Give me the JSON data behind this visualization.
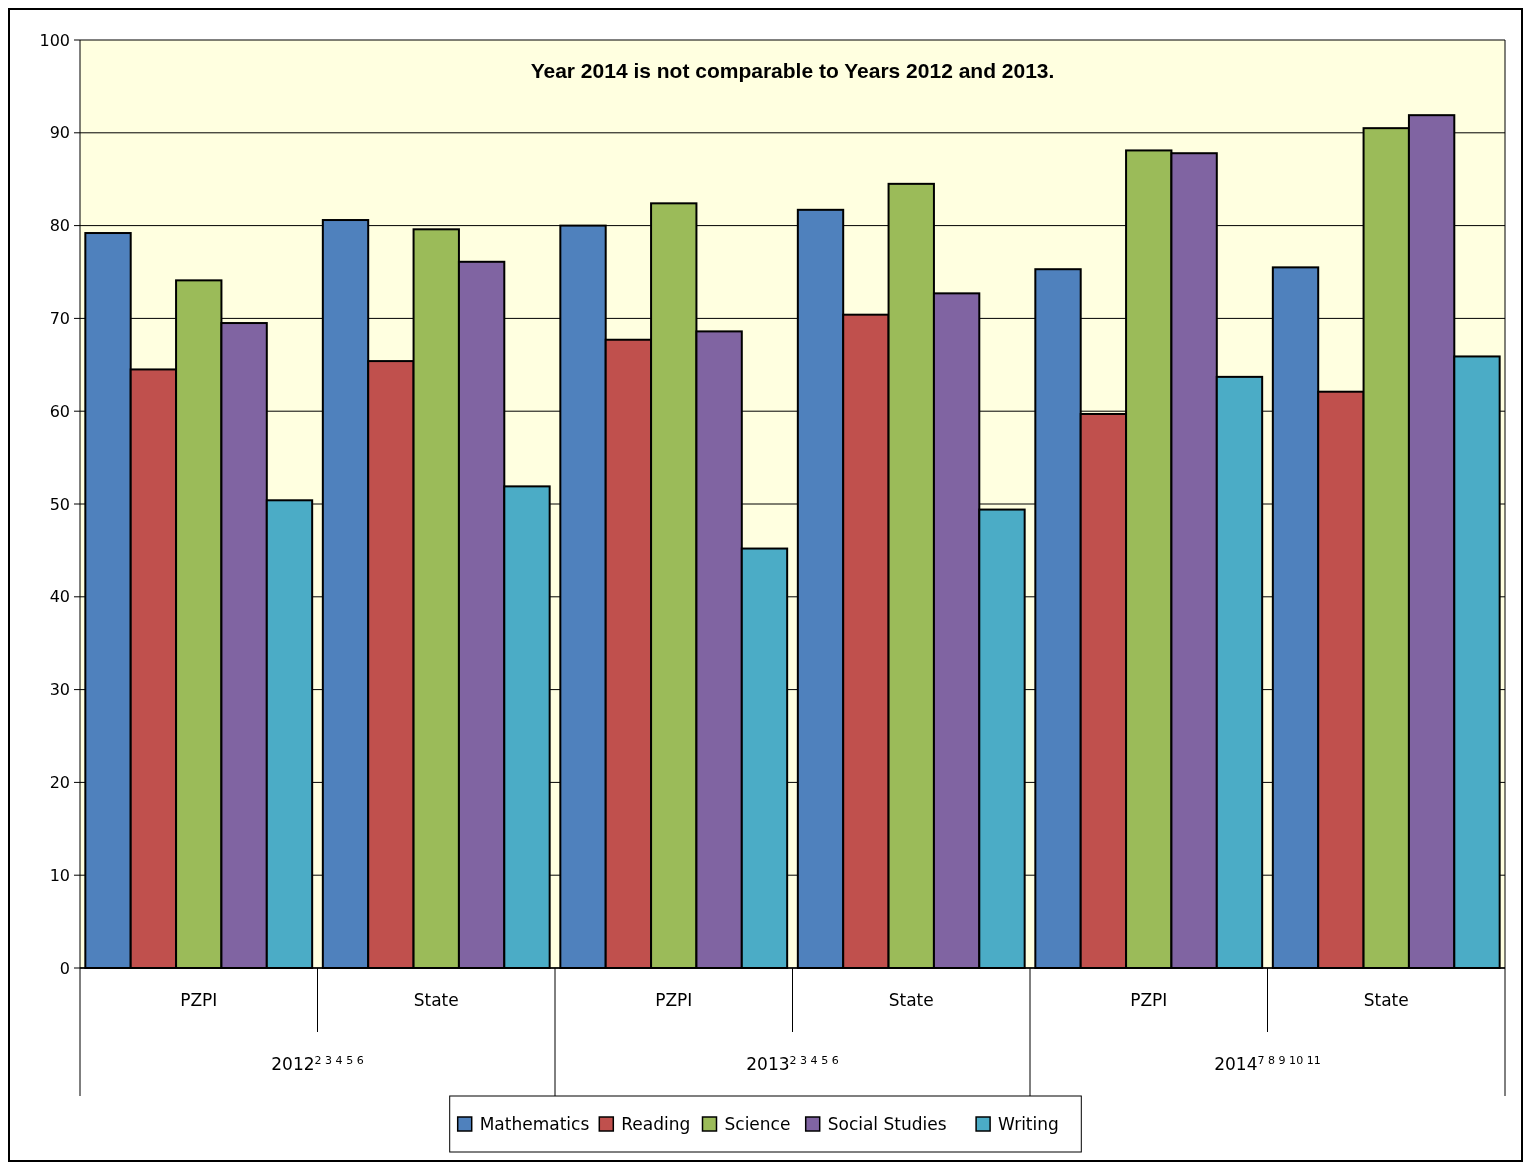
{
  "chart_data": {
    "type": "bar",
    "title": "Year 2014 is not comparable to  Years 2012 and 2013.",
    "categories": [
      "PZPI",
      "State",
      "PZPI",
      "State",
      "PZPI",
      "State"
    ],
    "annotations": [
      "2012$^{2 3 4 5 6}$",
      "2013$^{2 3 4 5 6}$",
      "2014$^{7 8 9 10 11}$"
    ],
    "series": [
      {
        "name": "Mathematics",
        "color": "#4f81bd",
        "values": [
          79.2,
          80.6,
          80.0,
          81.7,
          75.3,
          75.5
        ]
      },
      {
        "name": "Reading",
        "color": "#c0504d",
        "values": [
          64.5,
          65.4,
          67.7,
          70.4,
          59.7,
          62.1
        ]
      },
      {
        "name": "Science",
        "color": "#9bbb59",
        "values": [
          74.1,
          79.6,
          82.4,
          84.5,
          88.1,
          90.5
        ]
      },
      {
        "name": "Social Studies",
        "color": "#8064a2",
        "values": [
          69.5,
          76.1,
          68.6,
          72.7,
          87.8,
          91.9
        ]
      },
      {
        "name": "Writing",
        "color": "#4bacc6",
        "values": [
          50.4,
          51.9,
          45.2,
          49.4,
          63.7,
          65.9
        ]
      }
    ],
    "ylim": [
      0,
      100
    ],
    "yticks": [
      0,
      10,
      20,
      30,
      40,
      50,
      60,
      70,
      80,
      90,
      100
    ],
    "grid": "y",
    "legend": "bottom"
  }
}
